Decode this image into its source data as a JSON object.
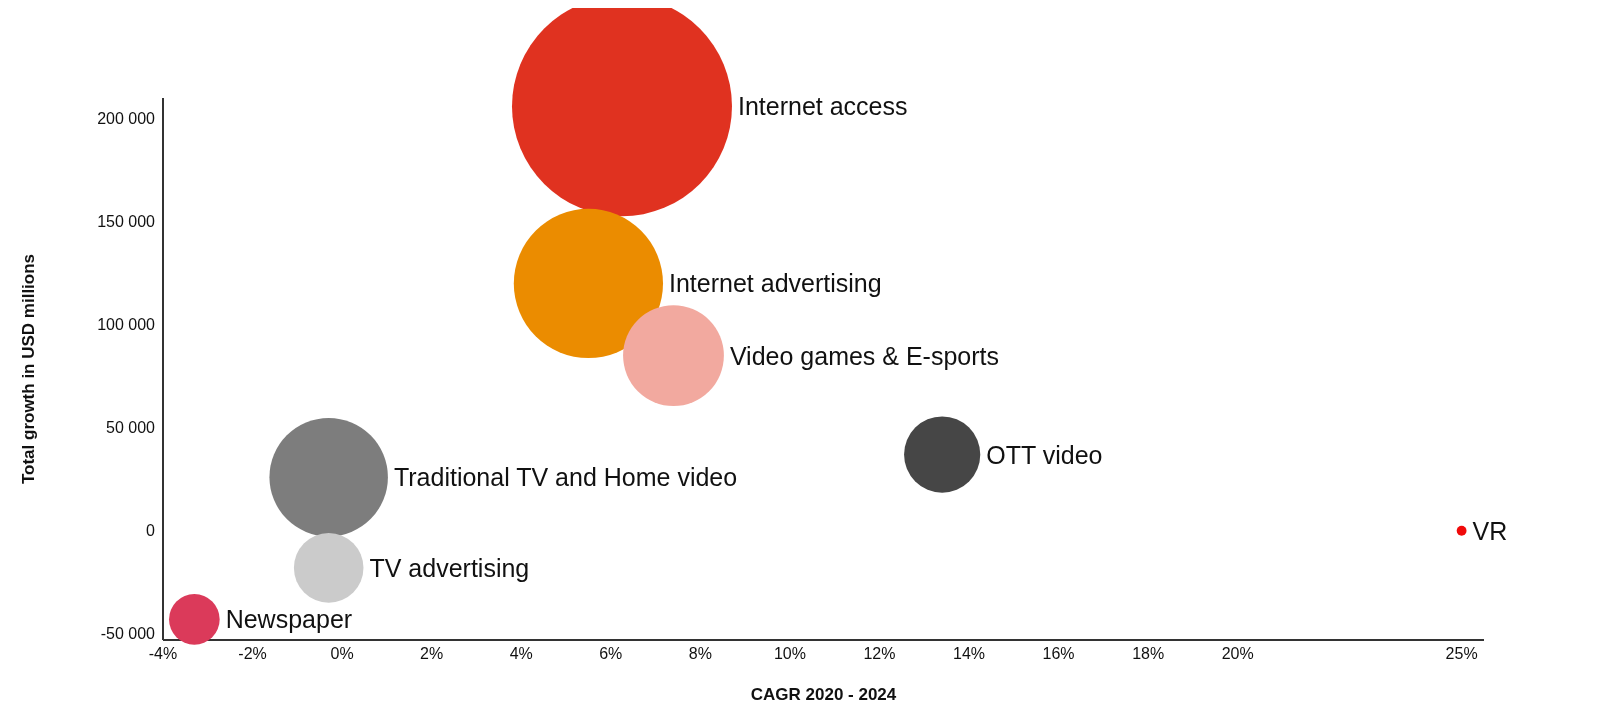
{
  "chart_data": {
    "type": "bubble",
    "xlabel": "CAGR 2020 ‑ 2024",
    "ylabel": "Total growth in USD millions",
    "xlim": [
      -4,
      25.5
    ],
    "xticks": [
      {
        "value": -4,
        "label": "-4%"
      },
      {
        "value": -2,
        "label": "-2%"
      },
      {
        "value": 0,
        "label": "0%"
      },
      {
        "value": 2,
        "label": "2%"
      },
      {
        "value": 4,
        "label": "4%"
      },
      {
        "value": 6,
        "label": "6%"
      },
      {
        "value": 8,
        "label": "8%"
      },
      {
        "value": 10,
        "label": "10%"
      },
      {
        "value": 12,
        "label": "12%"
      },
      {
        "value": 14,
        "label": "14%"
      },
      {
        "value": 16,
        "label": "16%"
      },
      {
        "value": 18,
        "label": "18%"
      },
      {
        "value": 20,
        "label": "20%"
      },
      {
        "value": 25,
        "label": "25%"
      }
    ],
    "ylim": [
      -53000,
      210000
    ],
    "yticks": [
      {
        "value": -50000,
        "label": "-50 000"
      },
      {
        "value": 0,
        "label": "0"
      },
      {
        "value": 50000,
        "label": "50 000"
      },
      {
        "value": 100000,
        "label": "100 000"
      },
      {
        "value": 150000,
        "label": "150 000"
      },
      {
        "value": 200000,
        "label": "200 000"
      }
    ],
    "grid": false,
    "legend": false,
    "series": [
      {
        "name": "Internet access",
        "color": "#e03220",
        "x": [
          6.25
        ],
        "values": [
          206000
        ],
        "sizes": [
          1
        ]
      },
      {
        "name": "Internet advertising",
        "color": "#eb8c00",
        "x": [
          5.5
        ],
        "values": [
          120000
        ],
        "sizes": [
          0.46
        ]
      },
      {
        "name": "Video games & E-sports",
        "color": "#f2a99f",
        "x": [
          7.4
        ],
        "values": [
          85000
        ],
        "sizes": [
          0.21
        ]
      },
      {
        "name": "OTT video",
        "color": "#464646",
        "x": [
          13.4
        ],
        "values": [
          37000
        ],
        "sizes": [
          0.12
        ]
      },
      {
        "name": "Traditional TV and Home video",
        "color": "#7d7d7d",
        "x": [
          -0.3
        ],
        "values": [
          26000
        ],
        "sizes": [
          0.29
        ]
      },
      {
        "name": "TV advertising",
        "color": "#cbcbcb",
        "x": [
          -0.3
        ],
        "values": [
          -18000
        ],
        "sizes": [
          0.1
        ]
      },
      {
        "name": "Newspaper",
        "color": "#db3a5a",
        "x": [
          -3.3
        ],
        "values": [
          -43000
        ],
        "sizes": [
          0.053
        ]
      },
      {
        "name": "VR",
        "color": "#f00a0a",
        "x": [
          25
        ],
        "values": [
          0
        ],
        "sizes": [
          0.002
        ]
      }
    ]
  }
}
